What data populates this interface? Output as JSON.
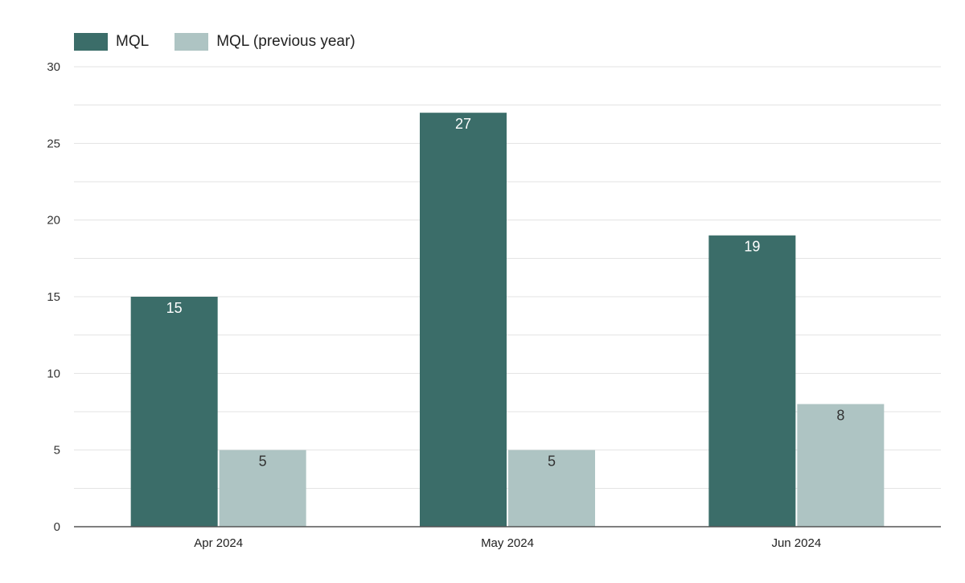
{
  "chart_data": {
    "type": "bar",
    "categories": [
      "Apr 2024",
      "May 2024",
      "Jun 2024"
    ],
    "series": [
      {
        "name": "MQL",
        "values": [
          15,
          27,
          19
        ],
        "color": "#3b6d69",
        "label_color": "#ffffff"
      },
      {
        "name": "MQL (previous year)",
        "values": [
          5,
          5,
          8
        ],
        "color": "#aec4c3",
        "label_color": "#333333"
      }
    ],
    "ylim": [
      0,
      30
    ],
    "yticks": [
      0,
      5,
      10,
      15,
      20,
      25,
      30
    ],
    "grid": true,
    "legend_position": "top-left",
    "title": "",
    "xlabel": "",
    "ylabel": ""
  }
}
